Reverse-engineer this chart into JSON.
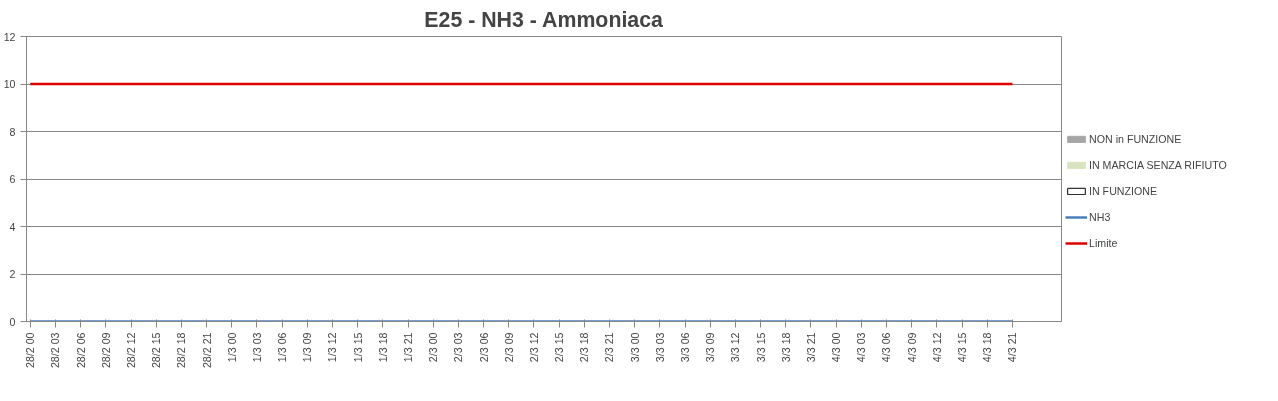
{
  "chart_data": {
    "type": "line",
    "title": "E25 - NH3 - Ammoniaca",
    "categories": [
      "28/2 00",
      "28/2 03",
      "28/2 06",
      "28/2 09",
      "28/2 12",
      "28/2 15",
      "28/2 18",
      "28/2 21",
      "1/3 00",
      "1/3 03",
      "1/3 06",
      "1/3 09",
      "1/3 12",
      "1/3 15",
      "1/3 18",
      "1/3 21",
      "2/3 00",
      "2/3 03",
      "2/3 06",
      "2/3 09",
      "2/3 12",
      "2/3 15",
      "2/3 18",
      "2/3 21",
      "3/3 00",
      "3/3 03",
      "3/3 06",
      "3/3 09",
      "3/3 12",
      "3/3 15",
      "3/3 18",
      "3/3 21",
      "4/3 00",
      "4/3 03",
      "4/3 06",
      "4/3 09",
      "4/3 12",
      "4/3 15",
      "4/3 18",
      "4/3 21"
    ],
    "series": [
      {
        "name": "NON in FUNZIONE",
        "type": "bar",
        "color": "#a6a6a6",
        "values": [
          null,
          null,
          null,
          null,
          null,
          null,
          null,
          null,
          null,
          null,
          null,
          null,
          null,
          null,
          null,
          null,
          null,
          null,
          null,
          null,
          null,
          null,
          null,
          null,
          null,
          null,
          null,
          null,
          null,
          null,
          null,
          null,
          null,
          null,
          null,
          null,
          null,
          null,
          null,
          null
        ]
      },
      {
        "name": "IN MARCIA SENZA RIFIUTO",
        "type": "bar",
        "color": "#d7e4bd",
        "values": [
          null,
          null,
          null,
          null,
          null,
          null,
          null,
          null,
          null,
          null,
          null,
          null,
          null,
          null,
          null,
          null,
          null,
          null,
          null,
          null,
          null,
          null,
          null,
          null,
          null,
          null,
          null,
          null,
          null,
          null,
          null,
          null,
          null,
          null,
          null,
          null,
          null,
          null,
          null,
          null
        ]
      },
      {
        "name": "IN FUNZIONE",
        "type": "bar",
        "color": "#ffffff",
        "values": [
          null,
          null,
          null,
          null,
          null,
          null,
          null,
          null,
          null,
          null,
          null,
          null,
          null,
          null,
          null,
          null,
          null,
          null,
          null,
          null,
          null,
          null,
          null,
          null,
          null,
          null,
          null,
          null,
          null,
          null,
          null,
          null,
          null,
          null,
          null,
          null,
          null,
          null,
          null,
          null
        ]
      },
      {
        "name": "NH3",
        "color": "#4a7ebb",
        "values": [
          0,
          0,
          0,
          0,
          0,
          0,
          0,
          0,
          0,
          0,
          0,
          0,
          0,
          0,
          0,
          0,
          0,
          0,
          0,
          0,
          0,
          0,
          0,
          0,
          0,
          0,
          0,
          0,
          0,
          0,
          0,
          0,
          0,
          0,
          0,
          0,
          0,
          0,
          0,
          0
        ]
      },
      {
        "name": "Limite",
        "color": "#e00000",
        "values": [
          10,
          10,
          10,
          10,
          10,
          10,
          10,
          10,
          10,
          10,
          10,
          10,
          10,
          10,
          10,
          10,
          10,
          10,
          10,
          10,
          10,
          10,
          10,
          10,
          10,
          10,
          10,
          10,
          10,
          10,
          10,
          10,
          10,
          10,
          10,
          10,
          10,
          10,
          10,
          10
        ]
      }
    ],
    "ylim": [
      0,
      12
    ],
    "yticks": [
      0,
      2,
      4,
      6,
      8,
      10,
      12
    ],
    "grid": "y",
    "legend": "right",
    "marker": "none",
    "line_style": "solid"
  }
}
